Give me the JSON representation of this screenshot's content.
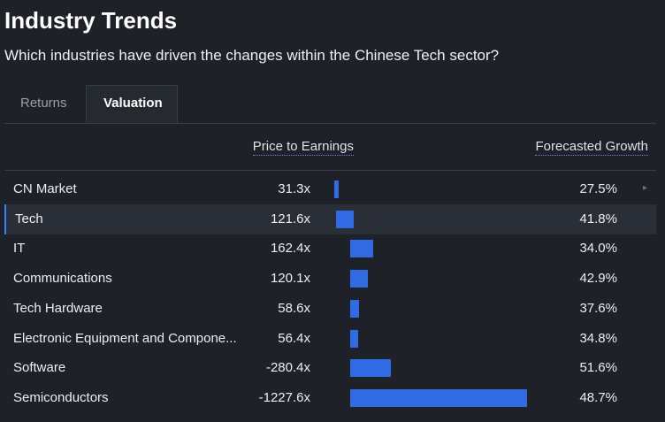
{
  "header": {
    "title": "Industry Trends",
    "subtitle": "Which industries have driven the changes within the Chinese Tech sector?"
  },
  "tabs": [
    "Returns",
    "Valuation"
  ],
  "table": {
    "columns": [
      "Price to Earnings",
      "Forecasted Growth"
    ],
    "rows": [
      {
        "name": "CN Market",
        "pe": {
          "value": 31.3,
          "label": "31.3x"
        },
        "growth": "27.5%"
      },
      {
        "name": "Tech",
        "pe": {
          "value": 121.6,
          "label": "121.6x"
        },
        "growth": "41.8%"
      },
      {
        "name": "IT",
        "pe": {
          "value": 162.4,
          "label": "162.4x"
        },
        "growth": "34.0%"
      },
      {
        "name": "Communications",
        "pe": {
          "value": 120.1,
          "label": "120.1x"
        },
        "growth": "42.9%"
      },
      {
        "name": "Tech Hardware",
        "pe": {
          "value": 58.6,
          "label": "58.6x"
        },
        "growth": "37.6%"
      },
      {
        "name": "Electronic Equipment and Compone...",
        "pe": {
          "value": 56.4,
          "label": "56.4x"
        },
        "growth": "34.8%"
      },
      {
        "name": "Software",
        "pe": {
          "value": -280.4,
          "label": "-280.4x"
        },
        "growth": "51.6%"
      },
      {
        "name": "Semiconductors",
        "pe": {
          "value": -1227.6,
          "label": "-1227.6x"
        },
        "growth": "48.7%"
      }
    ]
  }
}
